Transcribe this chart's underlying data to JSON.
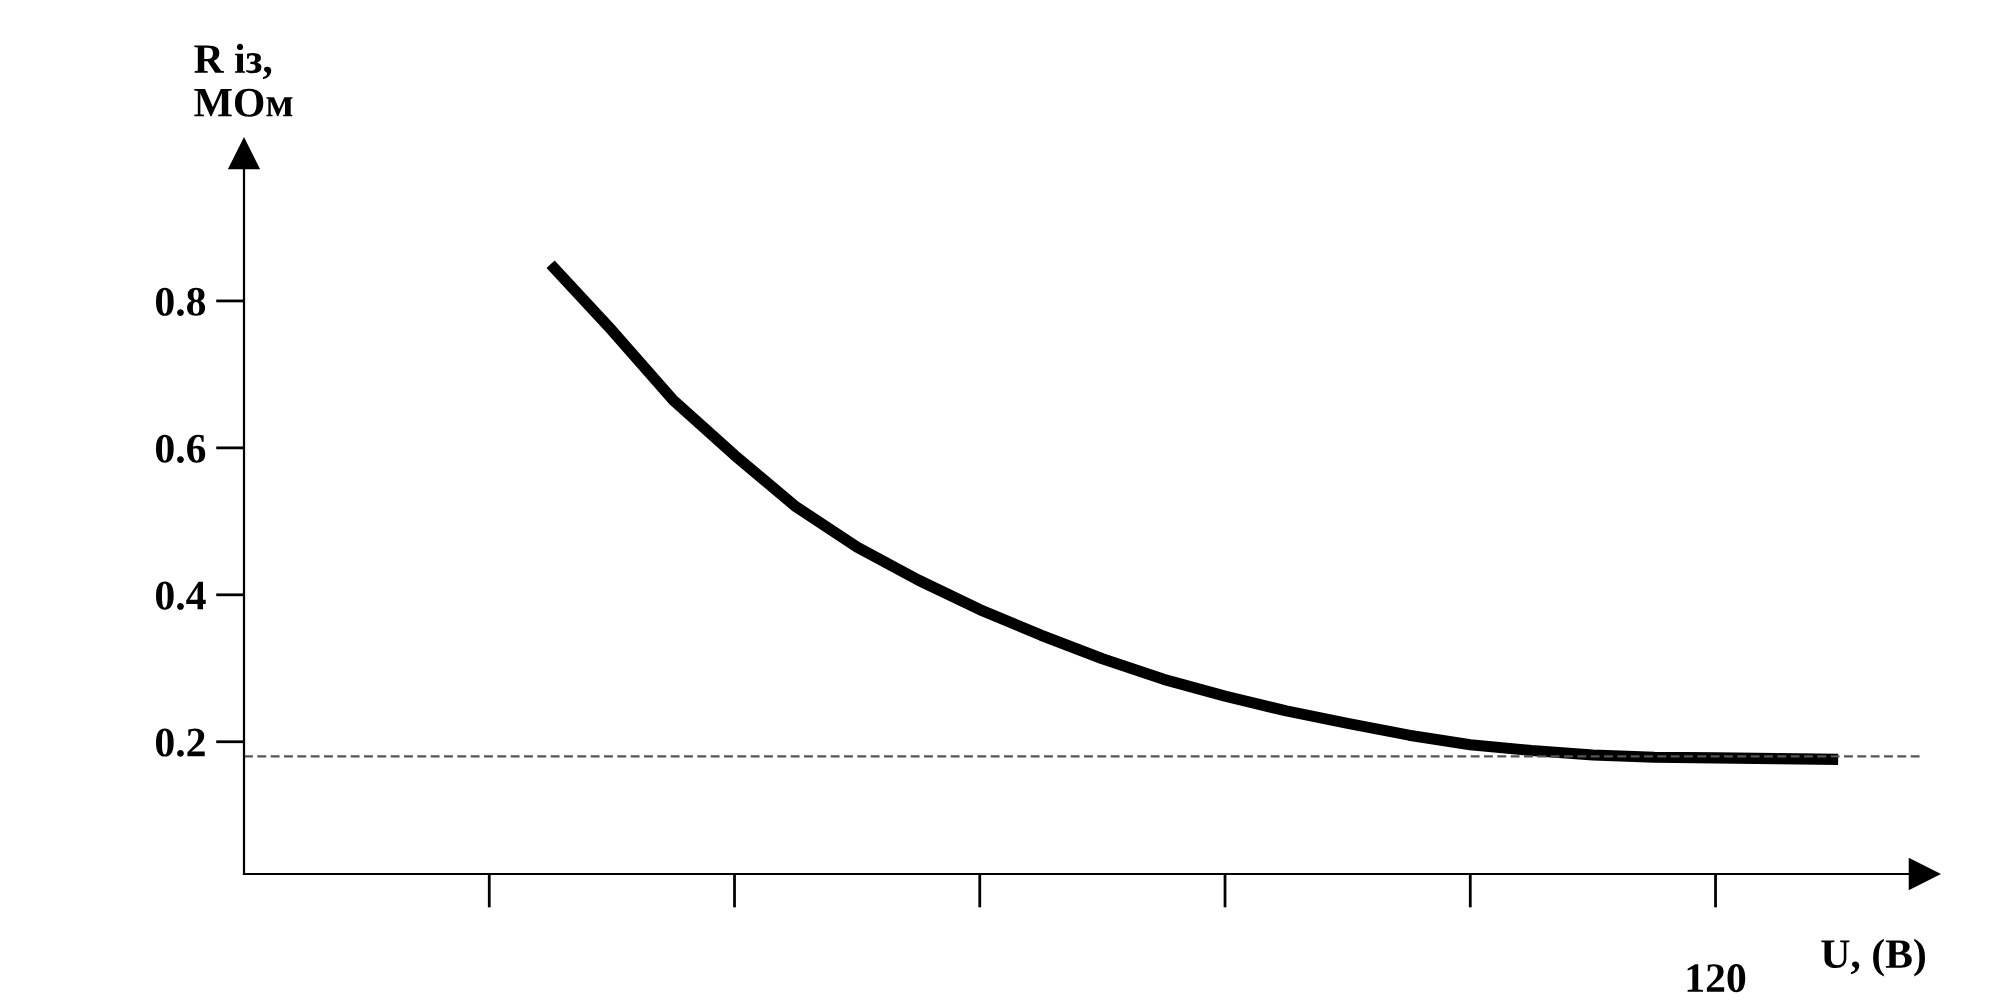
{
  "chart_data": {
    "type": "line",
    "xlabel": "U, (B)",
    "ylabel": "R із,\nМОм",
    "categories": [
      null,
      null,
      null,
      null,
      null,
      null,
      null,
      null,
      null,
      null,
      null,
      null,
      null,
      null,
      null,
      null,
      null,
      null,
      null,
      null,
      null,
      null,
      null,
      null,
      "120",
      null,
      null,
      null
    ],
    "series": [
      {
        "color": "#000000",
        "values": [
          null,
          null,
          null,
          null,
          null,
          0.85,
          0.76,
          0.665,
          0.59,
          0.52,
          0.465,
          0.42,
          0.38,
          0.345,
          0.313,
          0.285,
          0.262,
          0.242,
          0.225,
          0.209,
          0.196,
          0.188,
          0.182,
          0.179,
          0.178,
          0.177,
          0.176,
          null
        ]
      }
    ],
    "ylim": [
      0.02,
      1.0
    ],
    "yticks": [
      0.2,
      0.4,
      0.6,
      0.8
    ],
    "ref_lines": [
      {
        "axis": "y",
        "value": 0.18,
        "color": "#555555",
        "line_style": "dashed"
      }
    ],
    "grid": false,
    "legend": false,
    "marker": "none",
    "line_style": "solid"
  }
}
